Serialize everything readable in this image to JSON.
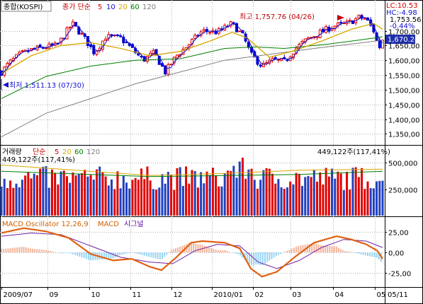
{
  "chart_data": [
    {
      "type": "candlestick",
      "panel": "price",
      "legend": {
        "title": "종합(KOSPI)",
        "group_label": "종가 단순",
        "ma_periods": [
          "5",
          "10",
          "20",
          "60",
          "120"
        ],
        "ma_colors": [
          "#d00000",
          "#1010d0",
          "#d8a800",
          "#008000",
          "#808080"
        ]
      },
      "info_box": [
        "LC:10.53",
        "HC:-4.98",
        "1,753.56",
        "-0.44%"
      ],
      "annotations": {
        "high": "최고 1,757.76 (04/26)",
        "low": "최저 1,511.13 (07/30)"
      },
      "last_price_label": "1,670.24",
      "y_ticks": [
        "1,700,00",
        "1,650,00",
        "1,600,00",
        "1,550,00",
        "1,500,00",
        "1,450,00",
        "1,400,00",
        "1,350,00"
      ],
      "y_tick_values": [
        1700,
        1650,
        1600,
        1550,
        1500,
        1450,
        1400,
        1350
      ],
      "ylim": [
        1315,
        1790
      ],
      "close_path": [
        [
          0,
          1560
        ],
        [
          10,
          1590
        ],
        [
          25,
          1620
        ],
        [
          40,
          1635
        ],
        [
          60,
          1645
        ],
        [
          75,
          1650
        ],
        [
          95,
          1725
        ],
        [
          110,
          1680
        ],
        [
          125,
          1625
        ],
        [
          140,
          1680
        ],
        [
          160,
          1675
        ],
        [
          175,
          1640
        ],
        [
          190,
          1600
        ],
        [
          205,
          1625
        ],
        [
          220,
          1560
        ],
        [
          235,
          1615
        ],
        [
          250,
          1650
        ],
        [
          270,
          1700
        ],
        [
          290,
          1695
        ],
        [
          310,
          1725
        ],
        [
          325,
          1680
        ],
        [
          335,
          1620
        ],
        [
          350,
          1580
        ],
        [
          365,
          1600
        ],
        [
          380,
          1595
        ],
        [
          395,
          1640
        ],
        [
          410,
          1670
        ],
        [
          425,
          1690
        ],
        [
          445,
          1715
        ],
        [
          465,
          1725
        ],
        [
          480,
          1745
        ],
        [
          490,
          1740
        ],
        [
          500,
          1700
        ],
        [
          507,
          1640
        ],
        [
          512,
          1670
        ]
      ],
      "ma_points": {
        "ma20": [
          [
            0,
            1555
          ],
          [
            40,
            1615
          ],
          [
            80,
            1650
          ],
          [
            120,
            1660
          ],
          [
            160,
            1640
          ],
          [
            200,
            1615
          ],
          [
            240,
            1630
          ],
          [
            280,
            1665
          ],
          [
            310,
            1695
          ],
          [
            330,
            1675
          ],
          [
            360,
            1610
          ],
          [
            390,
            1630
          ],
          [
            430,
            1665
          ],
          [
            470,
            1705
          ],
          [
            500,
            1725
          ],
          [
            512,
            1705
          ]
        ],
        "ma60": [
          [
            0,
            1470
          ],
          [
            60,
            1545
          ],
          [
            120,
            1580
          ],
          [
            180,
            1600
          ],
          [
            240,
            1605
          ],
          [
            300,
            1640
          ],
          [
            340,
            1645
          ],
          [
            380,
            1640
          ],
          [
            440,
            1655
          ],
          [
            500,
            1675
          ],
          [
            512,
            1680
          ]
        ],
        "ma120": [
          [
            0,
            1340
          ],
          [
            60,
            1420
          ],
          [
            120,
            1470
          ],
          [
            180,
            1520
          ],
          [
            240,
            1560
          ],
          [
            300,
            1600
          ],
          [
            360,
            1620
          ],
          [
            420,
            1640
          ],
          [
            470,
            1655
          ],
          [
            512,
            1668
          ]
        ]
      }
    },
    {
      "type": "bar",
      "panel": "volume",
      "legend": {
        "title": "거래량",
        "group_label": "단순",
        "ma_periods": [
          "5",
          "20",
          "60",
          "120"
        ],
        "ma_colors": [
          "#d00000",
          "#d8a800",
          "#008000",
          "#808080"
        ]
      },
      "value_label": "449,122주(117,41%)",
      "value_label_left": "449,122주(117,41%)",
      "y_ticks": [
        "500,000",
        "250,000"
      ],
      "y_tick_values": [
        500000,
        250000
      ],
      "ylim": [
        0,
        650000
      ]
    },
    {
      "type": "line",
      "panel": "macd",
      "legend": {
        "oscillator": "MACD Oscillator 12,26,9",
        "macd": "MACD",
        "signal": "시그널"
      },
      "y_ticks": [
        "25,00",
        "0,00",
        "-25,00"
      ],
      "y_tick_values": [
        25,
        0,
        -25
      ],
      "ylim": [
        -42,
        42
      ],
      "macd_points": [
        [
          0,
          24
        ],
        [
          30,
          30
        ],
        [
          60,
          26
        ],
        [
          90,
          18
        ],
        [
          120,
          -2
        ],
        [
          150,
          -10
        ],
        [
          175,
          -8
        ],
        [
          200,
          -18
        ],
        [
          215,
          -22
        ],
        [
          235,
          -6
        ],
        [
          255,
          12
        ],
        [
          270,
          14
        ],
        [
          300,
          12
        ],
        [
          320,
          5
        ],
        [
          335,
          -20
        ],
        [
          350,
          -30
        ],
        [
          370,
          -24
        ],
        [
          395,
          -5
        ],
        [
          420,
          12
        ],
        [
          450,
          20
        ],
        [
          470,
          16
        ],
        [
          490,
          10
        ],
        [
          505,
          2
        ],
        [
          512,
          -8
        ]
      ],
      "signal_points": [
        [
          0,
          20
        ],
        [
          40,
          24
        ],
        [
          80,
          22
        ],
        [
          120,
          8
        ],
        [
          160,
          -6
        ],
        [
          200,
          -12
        ],
        [
          230,
          -14
        ],
        [
          260,
          2
        ],
        [
          290,
          10
        ],
        [
          320,
          8
        ],
        [
          345,
          -12
        ],
        [
          370,
          -20
        ],
        [
          400,
          -10
        ],
        [
          430,
          6
        ],
        [
          460,
          16
        ],
        [
          490,
          14
        ],
        [
          512,
          6
        ]
      ]
    }
  ],
  "x_axis": {
    "labels": [
      "2009/07",
      "09",
      "10",
      "11",
      "12",
      "2010/01",
      "02",
      "03",
      "04",
      "05",
      "05/11"
    ],
    "label_index": [
      0,
      62,
      118,
      173,
      228,
      283,
      338,
      388,
      445,
      502,
      545
    ]
  }
}
